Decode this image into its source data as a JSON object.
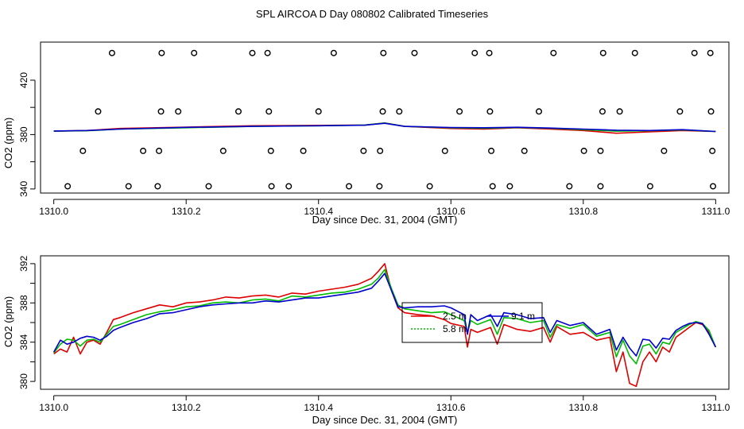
{
  "title": "SPL AIRCOA D  Day 080802  Calibrated Timeseries",
  "colors": {
    "red": "#dd0000",
    "green": "#00bb00",
    "blue": "#0000cc",
    "axis": "#000000"
  },
  "chart_data": [
    {
      "type": "scatter+line",
      "xlabel": "Day since Dec. 31, 2004 (GMT)",
      "ylabel": "CO2 (ppm)",
      "xlim": [
        1309.98,
        1311.02
      ],
      "ylim": [
        337,
        448
      ],
      "xticks": [
        1310.0,
        1310.2,
        1310.4,
        1310.6,
        1310.8,
        1311.0
      ],
      "xtick_labels": [
        "1310.0",
        "1310.2",
        "1310.4",
        "1310.6",
        "1310.8",
        "1311.0"
      ],
      "yticks": [
        340,
        360,
        380,
        400,
        420
      ],
      "ytick_labels": [
        "340",
        "",
        "380",
        "",
        "420"
      ],
      "circle_points": [
        {
          "x": 1310.088,
          "y": 440
        },
        {
          "x": 1310.163,
          "y": 440
        },
        {
          "x": 1310.212,
          "y": 440
        },
        {
          "x": 1310.3,
          "y": 440
        },
        {
          "x": 1310.323,
          "y": 440
        },
        {
          "x": 1310.423,
          "y": 440
        },
        {
          "x": 1310.498,
          "y": 440
        },
        {
          "x": 1310.545,
          "y": 440
        },
        {
          "x": 1310.636,
          "y": 440
        },
        {
          "x": 1310.658,
          "y": 440
        },
        {
          "x": 1310.755,
          "y": 440
        },
        {
          "x": 1310.83,
          "y": 440
        },
        {
          "x": 1310.878,
          "y": 440
        },
        {
          "x": 1310.968,
          "y": 440
        },
        {
          "x": 1310.992,
          "y": 440
        },
        {
          "x": 1310.067,
          "y": 397
        },
        {
          "x": 1310.162,
          "y": 397
        },
        {
          "x": 1310.188,
          "y": 397
        },
        {
          "x": 1310.279,
          "y": 397
        },
        {
          "x": 1310.325,
          "y": 397
        },
        {
          "x": 1310.4,
          "y": 397
        },
        {
          "x": 1310.497,
          "y": 397
        },
        {
          "x": 1310.522,
          "y": 397
        },
        {
          "x": 1310.613,
          "y": 397
        },
        {
          "x": 1310.659,
          "y": 397
        },
        {
          "x": 1310.733,
          "y": 397
        },
        {
          "x": 1310.829,
          "y": 397
        },
        {
          "x": 1310.855,
          "y": 397
        },
        {
          "x": 1310.946,
          "y": 397
        },
        {
          "x": 1310.993,
          "y": 397
        },
        {
          "x": 1310.044,
          "y": 368
        },
        {
          "x": 1310.135,
          "y": 368
        },
        {
          "x": 1310.159,
          "y": 368
        },
        {
          "x": 1310.256,
          "y": 368
        },
        {
          "x": 1310.328,
          "y": 368
        },
        {
          "x": 1310.377,
          "y": 368
        },
        {
          "x": 1310.468,
          "y": 368
        },
        {
          "x": 1310.493,
          "y": 368
        },
        {
          "x": 1310.591,
          "y": 368
        },
        {
          "x": 1310.661,
          "y": 368
        },
        {
          "x": 1310.711,
          "y": 368
        },
        {
          "x": 1310.801,
          "y": 368
        },
        {
          "x": 1310.826,
          "y": 368
        },
        {
          "x": 1310.922,
          "y": 368
        },
        {
          "x": 1310.995,
          "y": 368
        },
        {
          "x": 1310.021,
          "y": 342
        },
        {
          "x": 1310.113,
          "y": 342
        },
        {
          "x": 1310.157,
          "y": 342
        },
        {
          "x": 1310.234,
          "y": 342
        },
        {
          "x": 1310.329,
          "y": 342
        },
        {
          "x": 1310.355,
          "y": 342
        },
        {
          "x": 1310.446,
          "y": 342
        },
        {
          "x": 1310.492,
          "y": 342
        },
        {
          "x": 1310.568,
          "y": 342
        },
        {
          "x": 1310.663,
          "y": 342
        },
        {
          "x": 1310.689,
          "y": 342
        },
        {
          "x": 1310.779,
          "y": 342
        },
        {
          "x": 1310.826,
          "y": 342
        },
        {
          "x": 1310.901,
          "y": 342
        },
        {
          "x": 1310.996,
          "y": 342
        }
      ],
      "series": [
        {
          "name": "2.5 m",
          "color": "#dd0000",
          "x": [
            1310.0,
            1310.05,
            1310.1,
            1310.2,
            1310.3,
            1310.4,
            1310.47,
            1310.5,
            1310.53,
            1310.6,
            1310.65,
            1310.7,
            1310.75,
            1310.8,
            1310.85,
            1310.9,
            1310.95,
            1311.0
          ],
          "y": [
            382.5,
            383,
            384.5,
            385.5,
            386.5,
            386.8,
            387,
            388.5,
            386,
            384.5,
            384,
            385,
            384,
            383,
            381,
            382,
            383,
            382.3
          ]
        },
        {
          "name": "5.8 m",
          "color": "#00bb00",
          "x": [
            1310.0,
            1310.05,
            1310.1,
            1310.2,
            1310.3,
            1310.4,
            1310.47,
            1310.5,
            1310.53,
            1310.6,
            1310.65,
            1310.7,
            1310.75,
            1310.8,
            1310.85,
            1310.9,
            1310.95,
            1311.0
          ],
          "y": [
            382.5,
            382.8,
            384,
            385,
            386,
            386.5,
            387,
            388.5,
            386,
            385,
            384.6,
            385.2,
            384.6,
            383.6,
            382.5,
            382.8,
            383.4,
            382.3
          ]
        },
        {
          "name": "9.1 m",
          "color": "#0000cc",
          "x": [
            1310.0,
            1310.05,
            1310.1,
            1310.2,
            1310.3,
            1310.4,
            1310.47,
            1310.5,
            1310.53,
            1310.6,
            1310.65,
            1310.7,
            1310.75,
            1310.8,
            1310.85,
            1310.9,
            1310.95,
            1311.0
          ],
          "y": [
            382.6,
            383,
            384,
            385.3,
            386,
            386.5,
            386.9,
            388.3,
            386,
            385.2,
            385,
            385.4,
            384.8,
            384,
            383.2,
            383,
            383.6,
            382.3
          ]
        }
      ]
    },
    {
      "type": "line",
      "xlabel": "Day since Dec. 31, 2004 (GMT)",
      "ylabel": "CO2 (ppm)",
      "xlim": [
        1309.98,
        1311.02
      ],
      "ylim": [
        379.2,
        392.8
      ],
      "xticks": [
        1310.0,
        1310.2,
        1310.4,
        1310.6,
        1310.8,
        1311.0
      ],
      "xtick_labels": [
        "1310.0",
        "1310.2",
        "1310.4",
        "1310.6",
        "1310.8",
        "1311.0"
      ],
      "yticks": [
        380,
        382,
        384,
        386,
        388,
        390,
        392
      ],
      "ytick_labels": [
        "380",
        "",
        "384",
        "",
        "388",
        "",
        "392"
      ],
      "legend": {
        "position": "center-right",
        "entries": [
          {
            "label": "2.5 m",
            "color": "#dd0000"
          },
          {
            "label": "5.8 m",
            "color": "#00bb00"
          },
          {
            "label": "9.1 m",
            "color": "#0000cc"
          }
        ]
      },
      "series": [
        {
          "name": "2.5 m",
          "color": "#dd0000",
          "x": [
            1310.0,
            1310.01,
            1310.02,
            1310.03,
            1310.04,
            1310.05,
            1310.06,
            1310.07,
            1310.08,
            1310.09,
            1310.1,
            1310.12,
            1310.14,
            1310.16,
            1310.18,
            1310.2,
            1310.22,
            1310.24,
            1310.26,
            1310.28,
            1310.3,
            1310.32,
            1310.34,
            1310.36,
            1310.38,
            1310.4,
            1310.42,
            1310.44,
            1310.46,
            1310.48,
            1310.49,
            1310.5,
            1310.51,
            1310.52,
            1310.53,
            1310.55,
            1310.57,
            1310.59,
            1310.6,
            1310.62,
            1310.625,
            1310.63,
            1310.64,
            1310.66,
            1310.67,
            1310.68,
            1310.7,
            1310.72,
            1310.74,
            1310.75,
            1310.76,
            1310.78,
            1310.8,
            1310.82,
            1310.84,
            1310.85,
            1310.86,
            1310.87,
            1310.88,
            1310.89,
            1310.9,
            1310.91,
            1310.92,
            1310.93,
            1310.94,
            1310.95,
            1310.96,
            1310.97,
            1310.98,
            1310.99,
            1311.0
          ],
          "y": [
            382.8,
            383.3,
            383.0,
            384.5,
            382.8,
            384.0,
            384.2,
            383.8,
            385.0,
            386.3,
            386.5,
            387.0,
            387.4,
            387.8,
            387.6,
            388.0,
            388.1,
            388.3,
            388.6,
            388.5,
            388.7,
            388.8,
            388.6,
            389.0,
            388.9,
            389.2,
            389.4,
            389.6,
            389.9,
            390.5,
            391.2,
            392.0,
            389.3,
            387.5,
            387.0,
            386.8,
            386.7,
            386.3,
            385.9,
            385.6,
            383.5,
            385.3,
            385.0,
            385.5,
            383.8,
            385.8,
            385.3,
            385.1,
            385.5,
            384.0,
            385.6,
            384.8,
            385.0,
            384.2,
            384.5,
            381.0,
            383.0,
            379.8,
            379.5,
            382.0,
            383.0,
            382.0,
            383.5,
            383.0,
            384.5,
            385.0,
            385.5,
            386.0,
            385.8,
            385.0,
            383.5
          ]
        },
        {
          "name": "5.8 m",
          "color": "#00bb00",
          "x": [
            1310.0,
            1310.01,
            1310.02,
            1310.03,
            1310.04,
            1310.05,
            1310.06,
            1310.07,
            1310.08,
            1310.09,
            1310.1,
            1310.12,
            1310.14,
            1310.16,
            1310.18,
            1310.2,
            1310.22,
            1310.24,
            1310.26,
            1310.28,
            1310.3,
            1310.32,
            1310.34,
            1310.36,
            1310.38,
            1310.4,
            1310.42,
            1310.44,
            1310.46,
            1310.48,
            1310.49,
            1310.5,
            1310.51,
            1310.52,
            1310.53,
            1310.55,
            1310.57,
            1310.59,
            1310.6,
            1310.62,
            1310.625,
            1310.63,
            1310.64,
            1310.66,
            1310.67,
            1310.68,
            1310.7,
            1310.72,
            1310.74,
            1310.75,
            1310.76,
            1310.78,
            1310.8,
            1310.82,
            1310.84,
            1310.85,
            1310.86,
            1310.87,
            1310.88,
            1310.89,
            1310.9,
            1310.91,
            1310.92,
            1310.93,
            1310.94,
            1310.95,
            1310.96,
            1310.97,
            1310.98,
            1310.99,
            1311.0
          ],
          "y": [
            382.9,
            383.8,
            384.3,
            384.2,
            383.6,
            384.2,
            384.3,
            384.0,
            384.8,
            385.6,
            385.8,
            386.3,
            386.8,
            387.1,
            387.3,
            387.6,
            387.7,
            388.0,
            388.1,
            388.0,
            388.3,
            388.4,
            388.2,
            388.7,
            388.6,
            388.8,
            389.0,
            389.1,
            389.4,
            389.9,
            390.5,
            391.4,
            389.5,
            387.8,
            387.4,
            387.2,
            387.0,
            387.1,
            386.8,
            386.2,
            385.0,
            386.2,
            385.8,
            386.3,
            384.8,
            386.5,
            386.4,
            386.0,
            386.2,
            384.5,
            385.8,
            385.4,
            385.8,
            384.6,
            385.0,
            382.5,
            384.2,
            382.6,
            381.8,
            383.6,
            383.8,
            382.8,
            384.0,
            383.8,
            385.0,
            385.4,
            385.8,
            386.1,
            385.9,
            385.2,
            383.5
          ]
        },
        {
          "name": "9.1 m",
          "color": "#0000cc",
          "x": [
            1310.0,
            1310.01,
            1310.02,
            1310.03,
            1310.04,
            1310.05,
            1310.06,
            1310.07,
            1310.08,
            1310.09,
            1310.1,
            1310.12,
            1310.14,
            1310.16,
            1310.18,
            1310.2,
            1310.22,
            1310.24,
            1310.26,
            1310.28,
            1310.3,
            1310.32,
            1310.34,
            1310.36,
            1310.38,
            1310.4,
            1310.42,
            1310.44,
            1310.46,
            1310.48,
            1310.49,
            1310.5,
            1310.51,
            1310.52,
            1310.53,
            1310.55,
            1310.57,
            1310.59,
            1310.6,
            1310.62,
            1310.625,
            1310.63,
            1310.64,
            1310.66,
            1310.67,
            1310.68,
            1310.7,
            1310.72,
            1310.74,
            1310.75,
            1310.76,
            1310.78,
            1310.8,
            1310.82,
            1310.84,
            1310.85,
            1310.86,
            1310.87,
            1310.88,
            1310.89,
            1310.9,
            1310.91,
            1310.92,
            1310.93,
            1310.94,
            1310.95,
            1310.96,
            1310.97,
            1310.98,
            1310.99,
            1311.0
          ],
          "y": [
            383.0,
            384.2,
            383.8,
            384.0,
            384.4,
            384.6,
            384.5,
            384.2,
            384.6,
            385.2,
            385.5,
            386.0,
            386.4,
            386.9,
            387.0,
            387.3,
            387.6,
            387.8,
            387.9,
            388.0,
            388.0,
            388.2,
            388.1,
            388.3,
            388.5,
            388.5,
            388.7,
            388.9,
            389.1,
            389.5,
            390.2,
            391.0,
            389.3,
            387.6,
            387.5,
            387.6,
            387.6,
            387.7,
            387.5,
            386.8,
            384.8,
            386.8,
            386.2,
            386.8,
            385.6,
            387.0,
            386.8,
            386.4,
            386.5,
            385.0,
            386.2,
            385.7,
            386.0,
            384.8,
            385.3,
            383.2,
            384.5,
            383.4,
            382.6,
            384.3,
            384.2,
            383.4,
            384.4,
            384.3,
            385.2,
            385.6,
            385.9,
            386.0,
            385.9,
            384.8,
            383.5
          ]
        }
      ]
    }
  ]
}
